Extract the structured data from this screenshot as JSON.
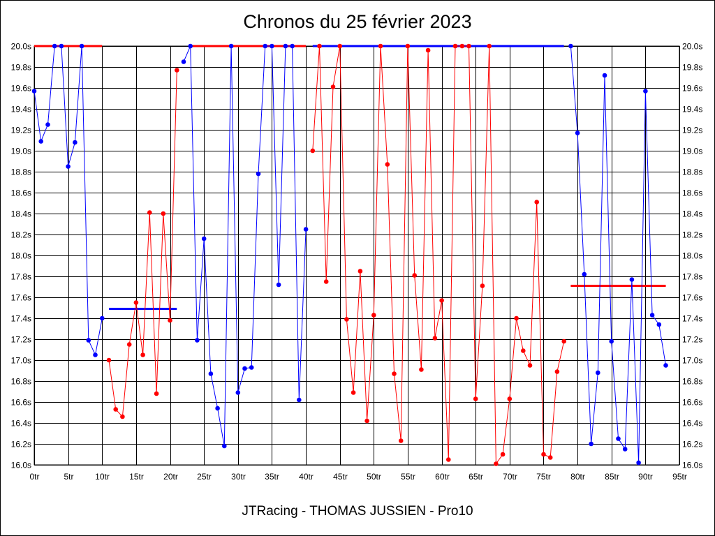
{
  "chart_data": {
    "type": "line",
    "title": "Chronos du 25 février 2023",
    "footer": "JTRacing - THOMAS JUSSIEN - Pro10",
    "xlabel": "",
    "ylabel": "",
    "xlim": [
      0,
      95
    ],
    "ylim": [
      16.0,
      20.0
    ],
    "x_tick_step": 5,
    "x_tick_suffix": "tr",
    "y_tick_step": 0.2,
    "y_tick_suffix": "s",
    "y_ticks_both_sides": true,
    "grid": true,
    "legend": "none",
    "segments": [
      {
        "color": "#0000ff",
        "x": [
          0,
          1,
          2,
          3,
          4,
          5,
          6,
          7,
          8,
          9,
          10
        ],
        "y": [
          19.57,
          19.09,
          19.25,
          20.0,
          20.0,
          18.85,
          19.08,
          20.0,
          17.19,
          17.05,
          17.4
        ]
      },
      {
        "color": "#ff0000",
        "x": [
          11,
          12,
          13,
          14,
          15,
          16,
          17,
          18,
          19,
          20,
          21
        ],
        "y": [
          17.0,
          16.53,
          16.46,
          17.15,
          17.55,
          17.05,
          18.41,
          16.68,
          18.4,
          17.38,
          19.77
        ]
      },
      {
        "color": "#0000ff",
        "x": [
          22,
          23,
          24,
          25,
          26,
          27,
          28,
          29,
          30,
          31,
          32,
          33,
          34,
          35,
          36,
          37,
          38,
          39,
          40
        ],
        "y": [
          19.85,
          20.0,
          17.19,
          18.16,
          16.87,
          16.54,
          16.18,
          20.0,
          16.69,
          16.92,
          16.93,
          18.78,
          20.0,
          20.0,
          17.72,
          20.0,
          20.0,
          16.62,
          18.25
        ]
      },
      {
        "color": "#ff0000",
        "x": [
          41,
          42,
          43,
          44,
          45,
          46,
          47,
          48,
          49,
          50,
          51,
          52,
          53,
          54,
          55,
          56,
          57,
          58,
          59,
          60,
          61,
          62,
          63,
          64,
          65,
          66,
          67,
          68,
          69,
          70,
          71,
          72,
          73,
          74,
          75,
          76,
          77,
          78
        ],
        "y": [
          19.0,
          20.0,
          17.75,
          19.61,
          20.0,
          17.39,
          16.69,
          17.85,
          16.42,
          17.43,
          20.0,
          18.87,
          16.87,
          16.23,
          20.0,
          17.81,
          16.91,
          19.96,
          17.21,
          17.57,
          16.05,
          20.0,
          20.0,
          20.0,
          16.63,
          17.71,
          20.0,
          16.01,
          16.1,
          16.63,
          17.4,
          17.09,
          16.95,
          18.51,
          16.1,
          16.07,
          16.89,
          17.18
        ]
      },
      {
        "color": "#0000ff",
        "x": [
          79,
          80,
          81,
          82,
          83,
          84,
          85,
          86,
          87,
          88,
          89,
          90,
          91,
          92,
          93
        ],
        "y": [
          20.0,
          19.17,
          17.82,
          16.2,
          16.88,
          19.72,
          17.18,
          16.25,
          16.15,
          17.77,
          16.02,
          19.57,
          17.43,
          17.34,
          16.95
        ]
      }
    ],
    "average_lines": [
      {
        "color": "#ff0000",
        "x": [
          0,
          10
        ],
        "y": 20.0
      },
      {
        "color": "#0000ff",
        "x": [
          11,
          21
        ],
        "y": 17.49
      },
      {
        "color": "#ff0000",
        "x": [
          23,
          40
        ],
        "y": 20.0
      },
      {
        "color": "#0000ff",
        "x": [
          41,
          78
        ],
        "y": 20.0
      },
      {
        "color": "#ff0000",
        "x": [
          79,
          93
        ],
        "y": 17.71
      }
    ]
  }
}
